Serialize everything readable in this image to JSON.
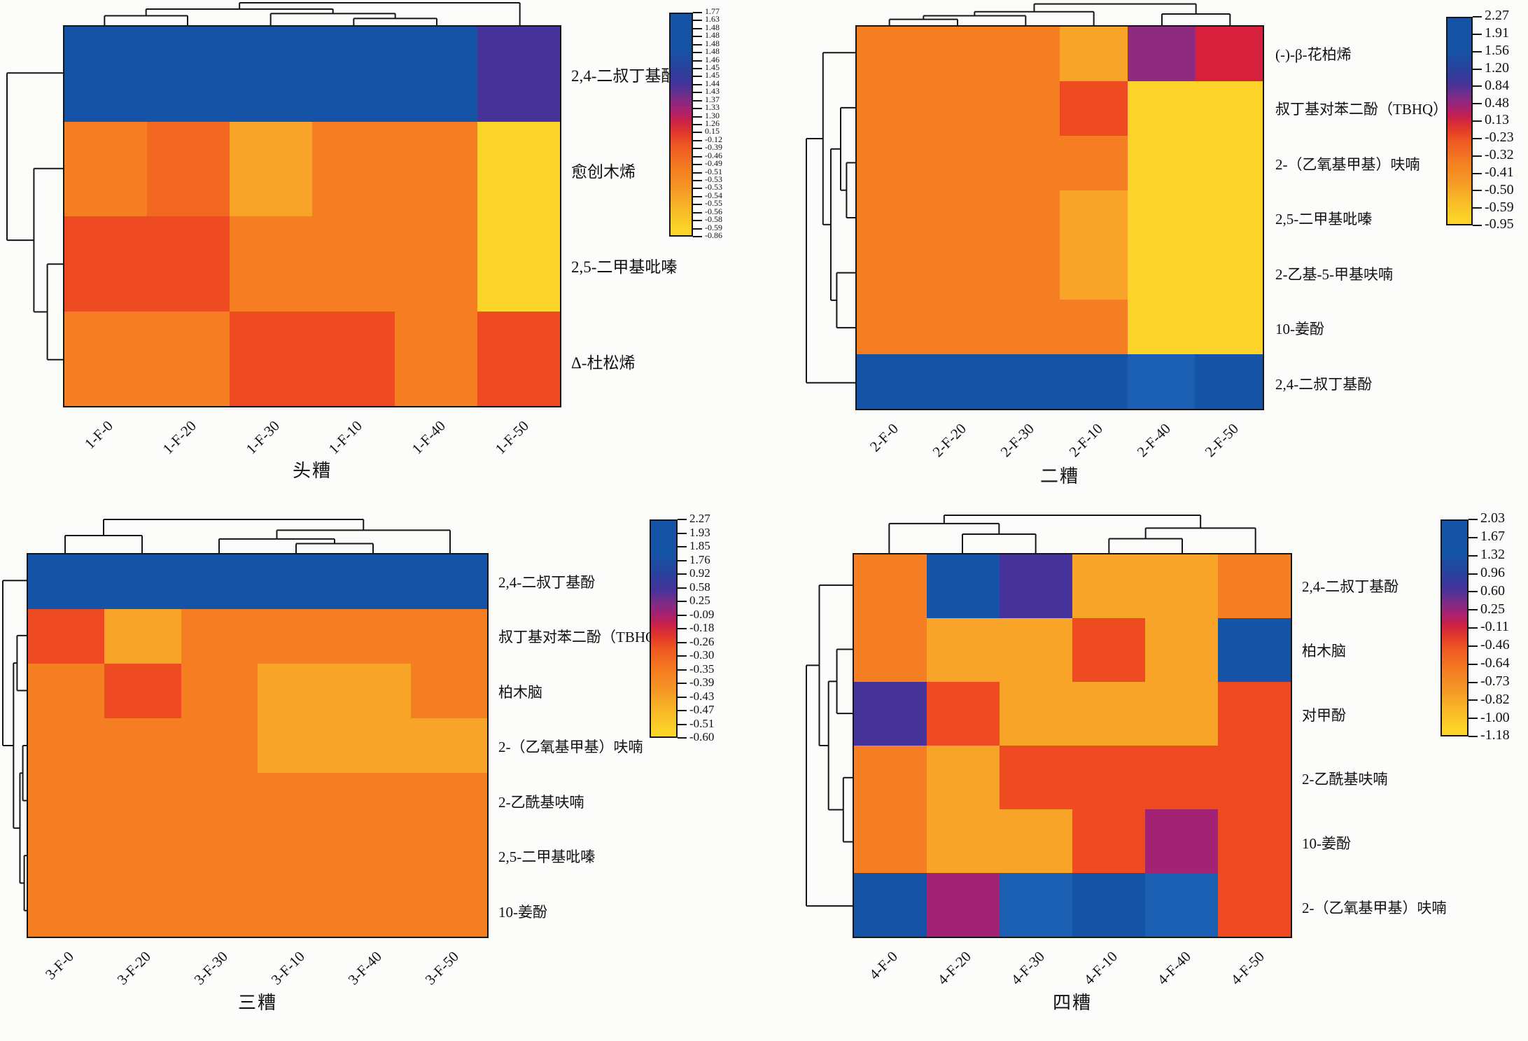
{
  "palette": {
    "blue": "#1553A6",
    "blue2": "#1A5FB2",
    "indigo": "#45339A",
    "purple": "#8E2B80",
    "magenta": "#A42273",
    "red": "#D6203C",
    "redorange": "#EF4B23",
    "deeporange": "#F26822",
    "orange": "#F47E21",
    "lightorange": "#F7A428",
    "yellow": "#FCD328"
  },
  "chart_data": [
    {
      "type": "heatmap",
      "title": "头糟",
      "x": [
        "1-F-0",
        "1-F-20",
        "1-F-30",
        "1-F-10",
        "1-F-40",
        "1-F-50"
      ],
      "y": [
        "2,4-二叔丁基酚",
        "愈创木烯",
        "2,5-二甲基吡嗪",
        "Δ-杜松烯"
      ],
      "cell_colors": [
        [
          "blue",
          "blue",
          "blue",
          "blue",
          "blue",
          "indigo"
        ],
        [
          "orange",
          "deeporange",
          "lightorange",
          "orange",
          "orange",
          "yellow"
        ],
        [
          "redorange",
          "redorange",
          "orange",
          "orange",
          "orange",
          "yellow"
        ],
        [
          "orange",
          "orange",
          "redorange",
          "redorange",
          "orange",
          "redorange"
        ]
      ],
      "colorbar_ticks": [
        "1.77",
        "1.63",
        "1.48",
        "1.48",
        "1.48",
        "1.48",
        "1.46",
        "1.45",
        "1.45",
        "1.44",
        "1.43",
        "1.37",
        "1.33",
        "1.30",
        "1.26",
        "0.15",
        "-0.12",
        "-0.39",
        "-0.46",
        "-0.49",
        "-0.51",
        "-0.53",
        "-0.53",
        "-0.54",
        "-0.55",
        "-0.56",
        "-0.58",
        "-0.59",
        "-0.86"
      ],
      "legend_position": "right",
      "col_tree": {
        "h": 1.0,
        "c": [
          {
            "h": 0.72,
            "c": [
              {
                "h": 0.42,
                "c": [
                  0,
                  1
                ]
              },
              {
                "h": 0.52,
                "c": [
                  2,
                  {
                    "h": 0.3,
                    "c": [
                      3,
                      4
                    ]
                  }
                ]
              }
            ]
          },
          5
        ]
      },
      "row_tree": {
        "h": 1.0,
        "c": [
          0,
          {
            "h": 0.52,
            "c": [
              1,
              {
                "h": 0.28,
                "c": [
                  2,
                  3
                ]
              }
            ]
          }
        ]
      }
    },
    {
      "type": "heatmap",
      "title": "二糟",
      "x": [
        "2-F-0",
        "2-F-20",
        "2-F-30",
        "2-F-10",
        "2-F-40",
        "2-F-50"
      ],
      "y": [
        "(-)-β-花柏烯",
        "叔丁基对苯二酚（TBHQ）",
        "2-（乙氧基甲基）呋喃",
        "2,5-二甲基吡嗪",
        "2-乙基-5-甲基呋喃",
        "10-姜酚",
        "2,4-二叔丁基酚"
      ],
      "cell_colors": [
        [
          "orange",
          "orange",
          "orange",
          "lightorange",
          "purple",
          "red"
        ],
        [
          "orange",
          "orange",
          "orange",
          "redorange",
          "yellow",
          "yellow"
        ],
        [
          "orange",
          "orange",
          "orange",
          "orange",
          "yellow",
          "yellow"
        ],
        [
          "orange",
          "orange",
          "orange",
          "lightorange",
          "yellow",
          "yellow"
        ],
        [
          "orange",
          "orange",
          "orange",
          "lightorange",
          "yellow",
          "yellow"
        ],
        [
          "orange",
          "orange",
          "orange",
          "orange",
          "yellow",
          "yellow"
        ],
        [
          "blue",
          "blue",
          "blue",
          "blue",
          "blue2",
          "blue"
        ]
      ],
      "colorbar_ticks": [
        "2.27",
        "1.91",
        "1.56",
        "1.20",
        "0.84",
        "0.48",
        "0.13",
        "-0.23",
        "-0.32",
        "-0.41",
        "-0.50",
        "-0.59",
        "-0.95"
      ],
      "legend_position": "right",
      "col_tree": {
        "h": 0.95,
        "c": [
          {
            "h": 0.6,
            "c": [
              {
                "h": 0.42,
                "c": [
                  {
                    "h": 0.26,
                    "c": [
                      0,
                      1
                    ]
                  },
                  2
                ]
              },
              3
            ]
          },
          {
            "h": 0.5,
            "c": [
              4,
              5
            ]
          }
        ]
      },
      "row_tree": {
        "h": 1.0,
        "c": [
          {
            "h": 0.66,
            "c": [
              0,
              {
                "h": 0.5,
                "c": [
                  {
                    "h": 0.3,
                    "c": [
                      1,
                      {
                        "h": 0.18,
                        "c": [
                          2,
                          3
                        ]
                      }
                    ]
                  },
                  {
                    "h": 0.38,
                    "c": [
                      4,
                      5
                    ]
                  }
                ]
              }
            ]
          },
          6
        ]
      }
    },
    {
      "type": "heatmap",
      "title": "三糟",
      "x": [
        "3-F-0",
        "3-F-20",
        "3-F-30",
        "3-F-10",
        "3-F-40",
        "3-F-50"
      ],
      "y": [
        "2,4-二叔丁基酚",
        "叔丁基对苯二酚（TBHQ）",
        "柏木脑",
        "2-（乙氧基甲基）呋喃",
        "2-乙酰基呋喃",
        "2,5-二甲基吡嗪",
        "10-姜酚"
      ],
      "cell_colors": [
        [
          "blue",
          "blue",
          "blue",
          "blue",
          "blue",
          "blue"
        ],
        [
          "redorange",
          "lightorange",
          "orange",
          "orange",
          "orange",
          "orange"
        ],
        [
          "orange",
          "redorange",
          "orange",
          "lightorange",
          "lightorange",
          "orange"
        ],
        [
          "orange",
          "orange",
          "orange",
          "lightorange",
          "lightorange",
          "lightorange"
        ],
        [
          "orange",
          "orange",
          "orange",
          "orange",
          "orange",
          "orange"
        ],
        [
          "orange",
          "orange",
          "orange",
          "orange",
          "orange",
          "orange"
        ],
        [
          "orange",
          "orange",
          "orange",
          "orange",
          "orange",
          "orange"
        ]
      ],
      "colorbar_ticks": [
        "2.27",
        "1.93",
        "1.85",
        "1.76",
        "0.92",
        "0.58",
        "0.25",
        "-0.09",
        "-0.18",
        "-0.26",
        "-0.30",
        "-0.35",
        "-0.39",
        "-0.43",
        "-0.47",
        "-0.51",
        "-0.60"
      ],
      "legend_position": "right",
      "col_tree": {
        "h": 1.0,
        "c": [
          {
            "h": 0.52,
            "c": [
              0,
              1
            ]
          },
          {
            "h": 0.68,
            "c": [
              {
                "h": 0.42,
                "c": [
                  2,
                  {
                    "h": 0.28,
                    "c": [
                      3,
                      4
                    ]
                  }
                ]
              },
              5
            ]
          }
        ]
      },
      "row_tree": {
        "h": 1.0,
        "c": [
          0,
          {
            "h": 0.55,
            "c": [
              {
                "h": 0.4,
                "c": [
                  1,
                  2
                ]
              },
              {
                "h": 0.28,
                "c": [
                  {
                    "h": 0.16,
                    "c": [
                      3,
                      4
                    ]
                  },
                  {
                    "h": 0.1,
                    "c": [
                      5,
                      6
                    ]
                  }
                ]
              }
            ]
          }
        ]
      }
    },
    {
      "type": "heatmap",
      "title": "四糟",
      "x": [
        "4-F-0",
        "4-F-20",
        "4-F-30",
        "4-F-10",
        "4-F-40",
        "4-F-50"
      ],
      "y": [
        "2,4-二叔丁基酚",
        "柏木脑",
        "对甲酚",
        "2-乙酰基呋喃",
        "10-姜酚",
        "2-（乙氧基甲基）呋喃"
      ],
      "cell_colors": [
        [
          "orange",
          "blue",
          "indigo",
          "lightorange",
          "lightorange",
          "orange"
        ],
        [
          "orange",
          "lightorange",
          "lightorange",
          "redorange",
          "lightorange",
          "blue"
        ],
        [
          "indigo",
          "redorange",
          "lightorange",
          "lightorange",
          "lightorange",
          "redorange"
        ],
        [
          "orange",
          "lightorange",
          "redorange",
          "redorange",
          "redorange",
          "redorange"
        ],
        [
          "orange",
          "lightorange",
          "lightorange",
          "redorange",
          "magenta",
          "redorange"
        ],
        [
          "blue",
          "magenta",
          "blue2",
          "blue",
          "blue2",
          "redorange"
        ]
      ],
      "colorbar_ticks": [
        "2.03",
        "1.67",
        "1.32",
        "0.96",
        "0.60",
        "0.25",
        "-0.11",
        "-0.46",
        "-0.64",
        "-0.73",
        "-0.82",
        "-1.00",
        "-1.18"
      ],
      "legend_position": "right",
      "col_tree": {
        "h": 1.0,
        "c": [
          {
            "h": 0.78,
            "c": [
              0,
              {
                "h": 0.5,
                "c": [
                  1,
                  2
                ]
              }
            ]
          },
          {
            "h": 0.66,
            "c": [
              {
                "h": 0.38,
                "c": [
                  3,
                  4
                ]
              },
              5
            ]
          }
        ]
      },
      "row_tree": {
        "h": 1.0,
        "c": [
          {
            "h": 0.72,
            "c": [
              0,
              {
                "h": 0.52,
                "c": [
                  {
                    "h": 0.34,
                    "c": [
                      1,
                      2
                    ]
                  },
                  {
                    "h": 0.2,
                    "c": [
                      3,
                      4
                    ]
                  }
                ]
              }
            ]
          },
          5
        ]
      }
    }
  ]
}
